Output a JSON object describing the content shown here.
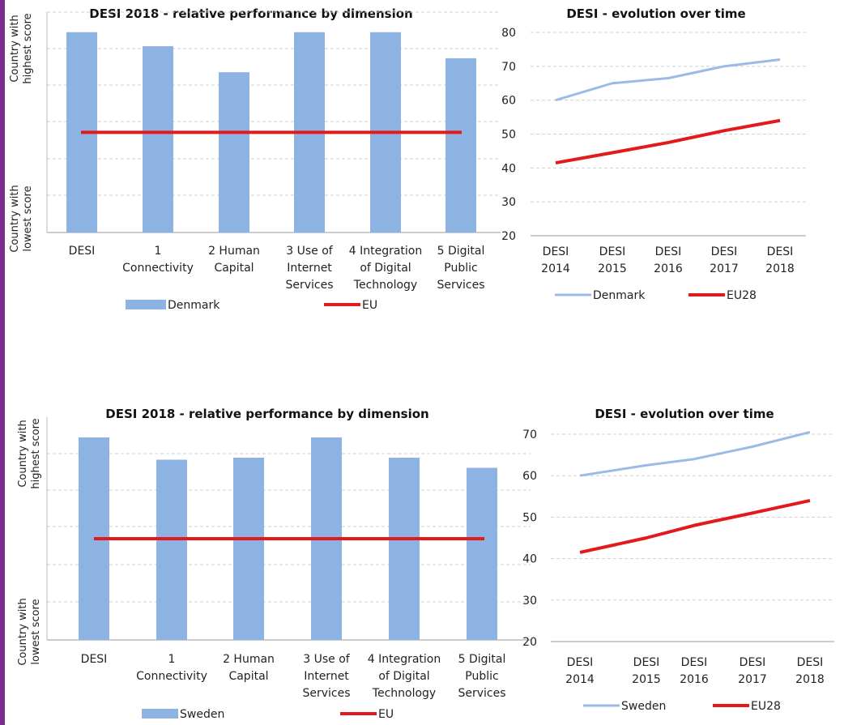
{
  "colors": {
    "bar": "#8db3e2",
    "eu_line": "#e31a1c",
    "country_line": "#9bbbe4",
    "grid": "#cfcfcf",
    "side_bar": "#7b2a8f"
  },
  "chart_data": [
    {
      "type": "bar",
      "title": "DESI 2018 -  relative performance by dimension",
      "y_top_label": [
        "Country with",
        "highest score"
      ],
      "y_bottom_label": [
        "Country with",
        "lowest score"
      ],
      "categories": [
        [
          "DESI"
        ],
        [
          "1",
          "Connectivity"
        ],
        [
          "2 Human",
          "Capital"
        ],
        [
          "3 Use of",
          "Internet",
          "Services"
        ],
        [
          "4 Integration",
          "of Digital",
          "Technology"
        ],
        [
          "5 Digital",
          "Public",
          "Services"
        ]
      ],
      "series": [
        {
          "name": "Denmark",
          "values": [
            1.0,
            0.93,
            0.8,
            1.0,
            1.0,
            0.87
          ]
        },
        {
          "name": "EU",
          "values": [
            0.5,
            0.5,
            0.5,
            0.5,
            0.5,
            0.5
          ]
        }
      ],
      "ylim": [
        0,
        1.1
      ],
      "grid": true
    },
    {
      "type": "line",
      "title": "DESI - evolution over time",
      "x": [
        [
          "DESI",
          "2014"
        ],
        [
          "DESI",
          "2015"
        ],
        [
          "DESI",
          "2016"
        ],
        [
          "DESI",
          "2017"
        ],
        [
          "DESI",
          "2018"
        ]
      ],
      "series": [
        {
          "name": "Denmark",
          "values": [
            60,
            65,
            66.5,
            70,
            72
          ]
        },
        {
          "name": "EU28",
          "values": [
            41.5,
            44.5,
            47.5,
            51,
            54
          ]
        }
      ],
      "ylim": [
        20,
        80
      ],
      "yticks": [
        20,
        30,
        40,
        50,
        60,
        70,
        80
      ],
      "grid": true
    },
    {
      "type": "bar",
      "title": "DESI 2018 -  relative performance by dimension",
      "y_top_label": [
        "Country with",
        "highest score"
      ],
      "y_bottom_label": [
        "Country with",
        "lowest score"
      ],
      "categories": [
        [
          "DESI"
        ],
        [
          "1",
          "Connectivity"
        ],
        [
          "2 Human",
          "Capital"
        ],
        [
          "3 Use of",
          "Internet",
          "Services"
        ],
        [
          "4 Integration",
          "of Digital",
          "Technology"
        ],
        [
          "5 Digital",
          "Public",
          "Services"
        ]
      ],
      "series": [
        {
          "name": "Sweden",
          "values": [
            1.0,
            0.89,
            0.9,
            1.0,
            0.9,
            0.85
          ]
        },
        {
          "name": "EU",
          "values": [
            0.5,
            0.5,
            0.5,
            0.5,
            0.5,
            0.5
          ]
        }
      ],
      "ylim": [
        0,
        1.1
      ],
      "grid": true
    },
    {
      "type": "line",
      "title": "DESI - evolution over time",
      "x": [
        [
          "DESI",
          "2014"
        ],
        [
          "DESI",
          "2015"
        ],
        [
          "DESI",
          "2016"
        ],
        [
          "DESI",
          "2017"
        ],
        [
          "DESI",
          "2018"
        ]
      ],
      "series": [
        {
          "name": "Sweden",
          "values": [
            60,
            62.5,
            64,
            67,
            70.5
          ]
        },
        {
          "name": "EU28",
          "values": [
            41.5,
            45,
            48,
            51,
            54
          ]
        }
      ],
      "ylim": [
        20,
        70
      ],
      "yticks": [
        20,
        30,
        40,
        50,
        60,
        70
      ],
      "grid": true
    }
  ]
}
